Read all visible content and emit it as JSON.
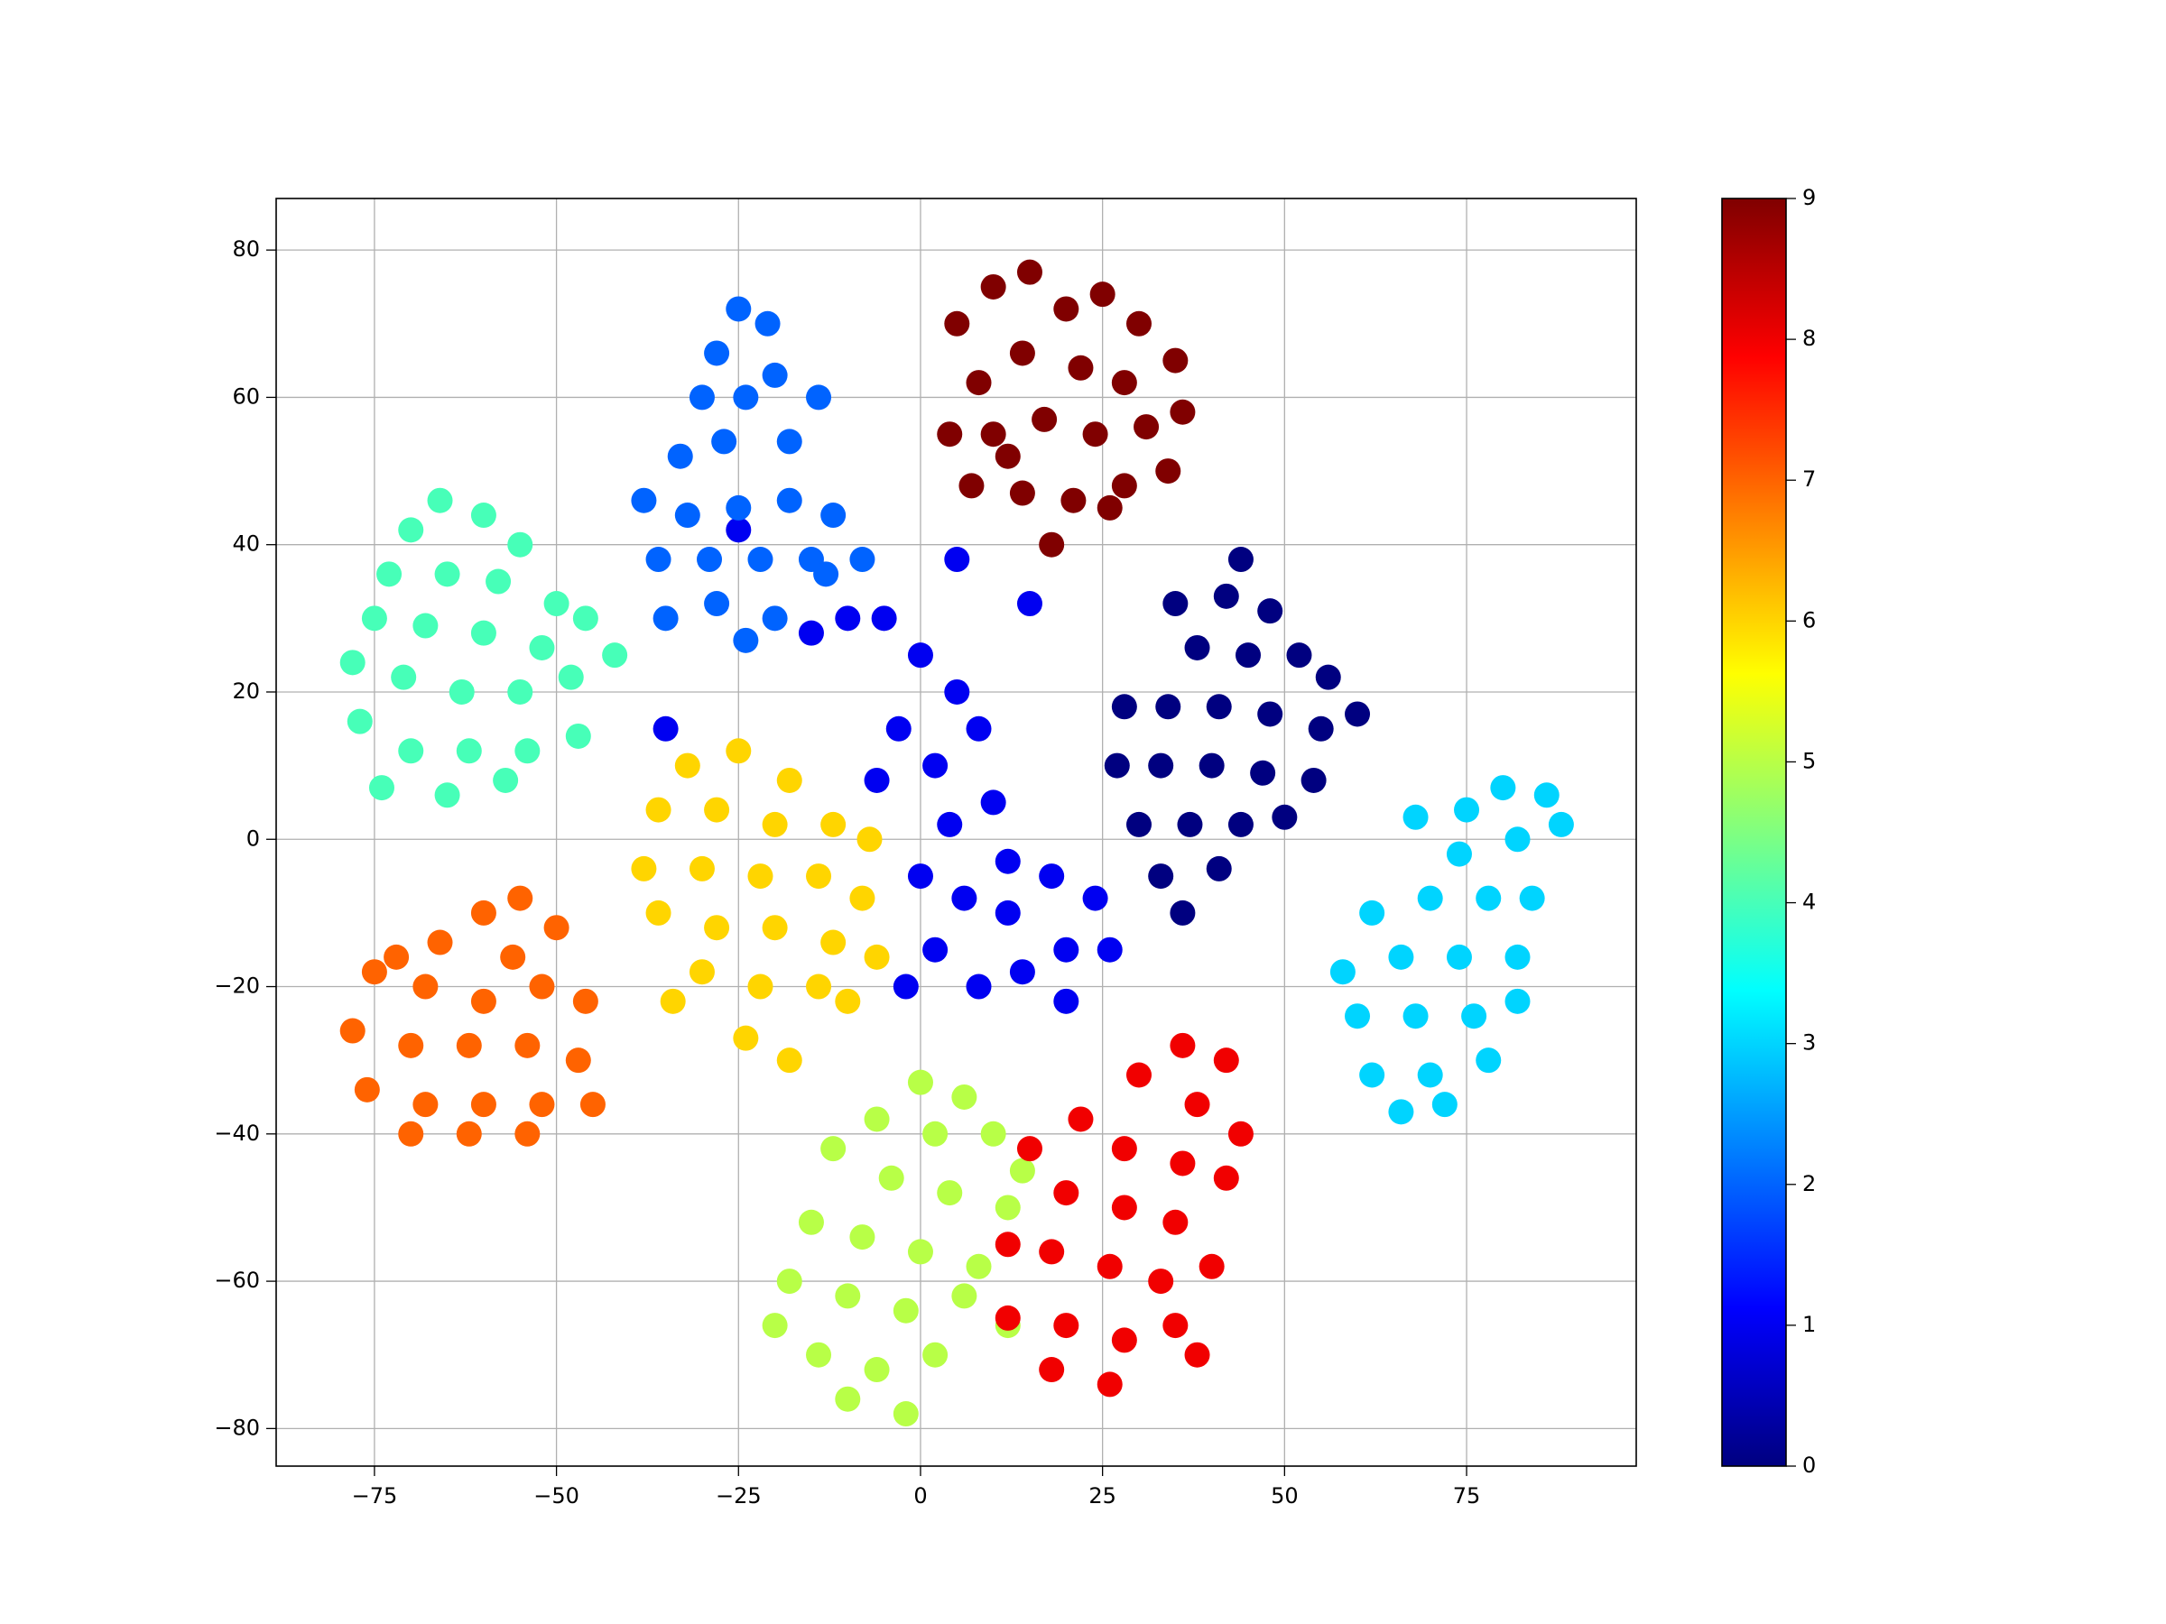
{
  "chart_data": {
    "type": "scatter",
    "grid": true,
    "xlim": [
      -88.5,
      98.3
    ],
    "ylim": [
      -85.1,
      87.0
    ],
    "xticks": [
      {
        "value": -75,
        "label": "−75"
      },
      {
        "value": -50,
        "label": "−50"
      },
      {
        "value": -25,
        "label": "−25"
      },
      0,
      25,
      50,
      75
    ],
    "yticks": [
      {
        "value": -80,
        "label": "−80"
      },
      {
        "value": -60,
        "label": "−60"
      },
      {
        "value": -40,
        "label": "−40"
      },
      {
        "value": -20,
        "label": "−20"
      },
      0,
      20,
      40,
      60,
      80
    ],
    "colorbar": {
      "cmap": "jet",
      "clim": [
        0,
        9
      ],
      "ticks": [
        0,
        1,
        2,
        3,
        4,
        5,
        6,
        7,
        8,
        9
      ]
    },
    "groups": [
      {
        "c": 1,
        "x": [
          -5,
          0,
          -10,
          5,
          -3,
          2,
          8,
          -6,
          4,
          10,
          0,
          6,
          12,
          18,
          24,
          20,
          14,
          8,
          2,
          26,
          -2,
          15,
          5,
          20,
          -15,
          -35,
          -25,
          12
        ],
        "y": [
          30,
          25,
          30,
          20,
          15,
          10,
          15,
          8,
          2,
          5,
          -5,
          -8,
          -3,
          -5,
          -8,
          -15,
          -18,
          -20,
          -15,
          -15,
          -20,
          32,
          38,
          -22,
          28,
          15,
          42,
          -10
        ]
      },
      {
        "c": 9,
        "x": [
          5,
          10,
          15,
          20,
          25,
          30,
          35,
          36,
          8,
          14,
          22,
          28,
          4,
          10,
          17,
          24,
          31,
          7,
          14,
          21,
          28,
          34,
          18,
          12,
          26
        ],
        "y": [
          70,
          75,
          77,
          72,
          74,
          70,
          65,
          58,
          62,
          66,
          64,
          62,
          55,
          55,
          57,
          55,
          56,
          48,
          47,
          46,
          48,
          50,
          40,
          52,
          45
        ]
      },
      {
        "c": 2,
        "x": [
          -25,
          -21,
          -28,
          -20,
          -30,
          -24,
          -14,
          -18,
          -27,
          -33,
          -38,
          -32,
          -25,
          -18,
          -12,
          -8,
          -15,
          -22,
          -29,
          -36,
          -35,
          -28,
          -20,
          -13,
          -24
        ],
        "y": [
          72,
          70,
          66,
          63,
          60,
          60,
          60,
          54,
          54,
          52,
          46,
          44,
          45,
          46,
          44,
          38,
          38,
          38,
          38,
          38,
          30,
          32,
          30,
          36,
          27
        ]
      },
      {
        "c": 4,
        "x": [
          -66,
          -60,
          -70,
          -55,
          -73,
          -65,
          -58,
          -50,
          -75,
          -68,
          -60,
          -52,
          -46,
          -78,
          -71,
          -63,
          -55,
          -48,
          -77,
          -70,
          -62,
          -54,
          -47,
          -74,
          -65,
          -57,
          -42
        ],
        "y": [
          46,
          44,
          42,
          40,
          36,
          36,
          35,
          32,
          30,
          29,
          28,
          26,
          30,
          24,
          22,
          20,
          20,
          22,
          16,
          12,
          12,
          12,
          14,
          7,
          6,
          8,
          25
        ]
      },
      {
        "c": 0,
        "x": [
          35,
          42,
          48,
          52,
          38,
          45,
          56,
          60,
          28,
          34,
          41,
          48,
          55,
          27,
          33,
          40,
          47,
          54,
          30,
          37,
          44,
          50,
          33,
          41,
          36,
          44
        ],
        "y": [
          32,
          33,
          31,
          25,
          26,
          25,
          22,
          17,
          18,
          18,
          18,
          17,
          15,
          10,
          10,
          10,
          9,
          8,
          2,
          2,
          2,
          3,
          -5,
          -4,
          -10,
          38
        ]
      },
      {
        "c": 6,
        "x": [
          -32,
          -25,
          -18,
          -36,
          -28,
          -20,
          -12,
          -7,
          -38,
          -30,
          -22,
          -14,
          -8,
          -36,
          -28,
          -20,
          -12,
          -6,
          -30,
          -22,
          -14,
          -24,
          -18,
          -34,
          -10
        ],
        "y": [
          10,
          12,
          8,
          4,
          4,
          2,
          2,
          0,
          -4,
          -4,
          -5,
          -5,
          -8,
          -10,
          -12,
          -12,
          -14,
          -16,
          -18,
          -20,
          -20,
          -27,
          -30,
          -22,
          -22
        ]
      },
      {
        "c": 7,
        "x": [
          -55,
          -60,
          -50,
          -66,
          -56,
          -75,
          -68,
          -60,
          -52,
          -46,
          -78,
          -70,
          -62,
          -54,
          -47,
          -76,
          -68,
          -60,
          -52,
          -45,
          -70,
          -62,
          -54,
          -72
        ],
        "y": [
          -8,
          -10,
          -12,
          -14,
          -16,
          -18,
          -20,
          -22,
          -20,
          -22,
          -26,
          -28,
          -28,
          -28,
          -30,
          -34,
          -36,
          -36,
          -36,
          -36,
          -40,
          -40,
          -40,
          -16
        ]
      },
      {
        "c": 3,
        "x": [
          80,
          86,
          75,
          68,
          88,
          82,
          74,
          70,
          78,
          84,
          62,
          58,
          66,
          74,
          82,
          60,
          68,
          76,
          82,
          62,
          70,
          78,
          66,
          72
        ],
        "y": [
          7,
          6,
          4,
          3,
          2,
          0,
          -2,
          -8,
          -8,
          -8,
          -10,
          -18,
          -16,
          -16,
          -16,
          -24,
          -24,
          -24,
          -22,
          -32,
          -32,
          -30,
          -37,
          -36
        ]
      },
      {
        "c": 5,
        "x": [
          0,
          6,
          -6,
          2,
          10,
          -12,
          -4,
          4,
          12,
          -15,
          -8,
          0,
          8,
          -18,
          -10,
          -2,
          6,
          12,
          -20,
          -14,
          -6,
          2,
          -10,
          -2,
          14
        ],
        "y": [
          -33,
          -35,
          -38,
          -40,
          -40,
          -42,
          -46,
          -48,
          -50,
          -52,
          -54,
          -56,
          -58,
          -60,
          -62,
          -64,
          -62,
          -66,
          -66,
          -70,
          -72,
          -70,
          -76,
          -78,
          -45
        ]
      },
      {
        "c": 8,
        "x": [
          36,
          42,
          30,
          38,
          44,
          22,
          28,
          36,
          42,
          15,
          20,
          28,
          35,
          12,
          18,
          26,
          33,
          40,
          12,
          20,
          28,
          35,
          18,
          26,
          38
        ],
        "y": [
          -28,
          -30,
          -32,
          -36,
          -40,
          -38,
          -42,
          -44,
          -46,
          -42,
          -48,
          -50,
          -52,
          -55,
          -56,
          -58,
          -60,
          -58,
          -65,
          -66,
          -68,
          -66,
          -72,
          -74,
          -70
        ]
      }
    ]
  }
}
